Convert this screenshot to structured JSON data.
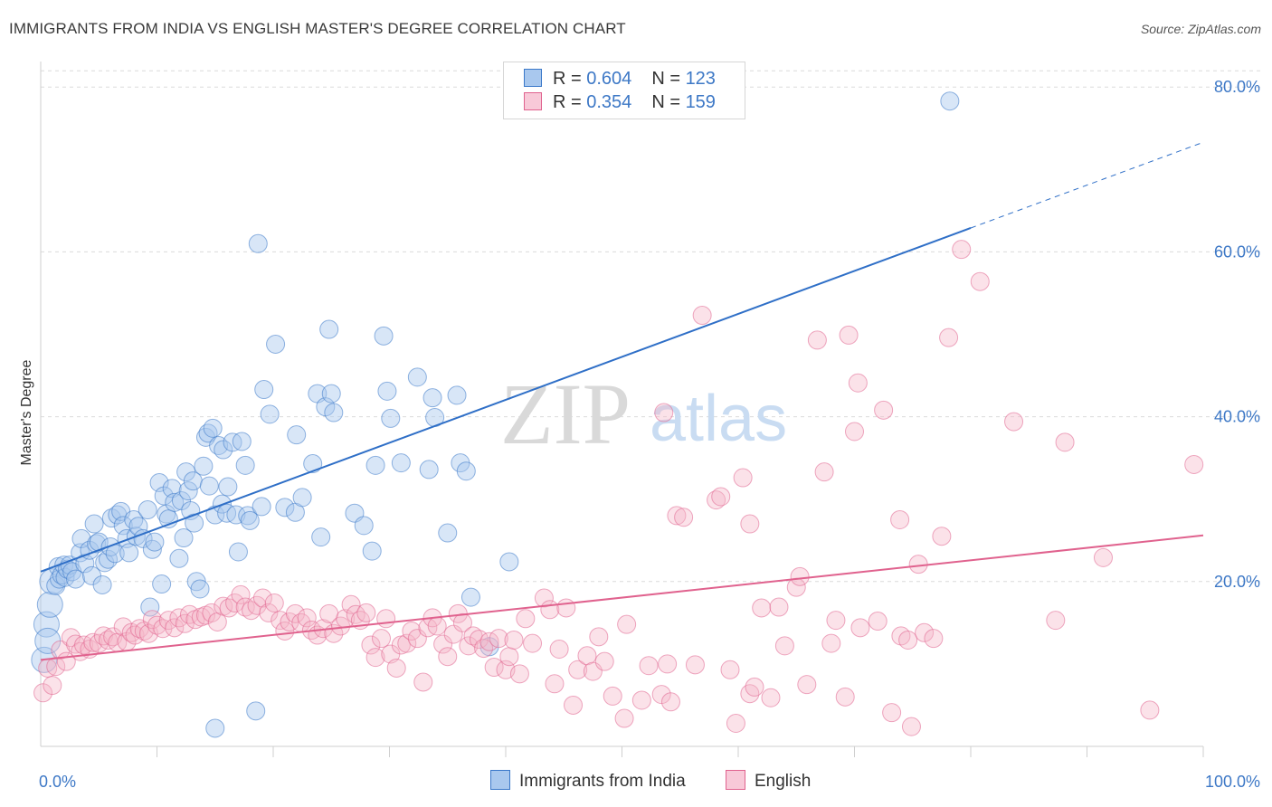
{
  "header": {
    "title": "IMMIGRANTS FROM INDIA VS ENGLISH MASTER'S DEGREE CORRELATION CHART",
    "source": "Source: ZipAtlas.com"
  },
  "watermark": {
    "zip": "ZIP",
    "atlas": "atlas"
  },
  "legend": {
    "rows": [
      {
        "r_label": "R = ",
        "r_value": "0.604",
        "n_label": "N = ",
        "n_value": "123"
      },
      {
        "r_label": "R = ",
        "r_value": "0.354",
        "n_label": "N = ",
        "n_value": "159"
      }
    ]
  },
  "bottom_legend": [
    {
      "label": "Immigrants from India"
    },
    {
      "label": "English"
    }
  ],
  "colors": {
    "blue": "#3a78c9",
    "blue_fill": "#a9c8ee",
    "pink": "#e0628e",
    "pink_fill": "#f5b6c9",
    "grid": "#dcdcdc",
    "tick_text": "#3d78c6"
  },
  "chart_data": {
    "type": "scatter",
    "title": "IMMIGRANTS FROM INDIA VS ENGLISH MASTER'S DEGREE CORRELATION CHART",
    "xlabel": "",
    "ylabel": "Master's Degree",
    "xlim": [
      0,
      100
    ],
    "ylim": [
      0,
      82
    ],
    "x_tick_labels": [
      {
        "value": 0,
        "label": "0.0%"
      },
      {
        "value": 100,
        "label": "100.0%"
      }
    ],
    "y_tick_labels": [
      {
        "value": 20,
        "label": "20.0%"
      },
      {
        "value": 40,
        "label": "40.0%"
      },
      {
        "value": 60,
        "label": "60.0%"
      },
      {
        "value": 80,
        "label": "80.0%"
      }
    ],
    "grid": true,
    "legend_position": "top-center",
    "series": [
      {
        "name": "Immigrants from India",
        "color": "#3a78c9",
        "R": 0.604,
        "N": 123,
        "trend": {
          "x0": 0,
          "y0": 21.2,
          "x1": 80,
          "y1": 62.9,
          "dash_to_x": 100,
          "dash_to_y": 73.3
        },
        "points": [
          [
            0.3,
            10.5
          ],
          [
            0.5,
            14.8
          ],
          [
            0.8,
            17.2
          ],
          [
            1.0,
            20.0
          ],
          [
            1.3,
            19.5
          ],
          [
            1.5,
            21.8
          ],
          [
            1.6,
            20.3
          ],
          [
            1.8,
            20.8
          ],
          [
            2.0,
            22.0
          ],
          [
            2.1,
            20.5
          ],
          [
            2.3,
            21.5
          ],
          [
            2.5,
            22.0
          ],
          [
            2.7,
            21.2
          ],
          [
            3.0,
            20.3
          ],
          [
            3.4,
            23.5
          ],
          [
            3.5,
            25.2
          ],
          [
            3.8,
            22.2
          ],
          [
            4.2,
            23.8
          ],
          [
            4.4,
            20.7
          ],
          [
            4.6,
            27.0
          ],
          [
            4.8,
            24.6
          ],
          [
            5.0,
            24.8
          ],
          [
            5.3,
            19.6
          ],
          [
            5.5,
            22.3
          ],
          [
            5.8,
            22.7
          ],
          [
            6.0,
            24.2
          ],
          [
            6.1,
            27.7
          ],
          [
            6.4,
            23.4
          ],
          [
            6.6,
            28.1
          ],
          [
            6.9,
            28.5
          ],
          [
            7.1,
            26.8
          ],
          [
            7.4,
            25.2
          ],
          [
            7.6,
            23.5
          ],
          [
            8.0,
            27.5
          ],
          [
            8.2,
            25.5
          ],
          [
            8.4,
            26.7
          ],
          [
            8.8,
            25.2
          ],
          [
            9.2,
            28.7
          ],
          [
            9.4,
            16.9
          ],
          [
            9.6,
            23.9
          ],
          [
            9.8,
            24.8
          ],
          [
            10.2,
            32.0
          ],
          [
            10.4,
            19.7
          ],
          [
            10.6,
            30.4
          ],
          [
            10.8,
            28.2
          ],
          [
            11.0,
            27.6
          ],
          [
            11.3,
            31.3
          ],
          [
            11.5,
            29.6
          ],
          [
            11.9,
            22.8
          ],
          [
            12.1,
            29.8
          ],
          [
            12.3,
            25.3
          ],
          [
            12.5,
            33.3
          ],
          [
            12.7,
            31.0
          ],
          [
            12.9,
            28.6
          ],
          [
            13.1,
            32.2
          ],
          [
            13.2,
            27.1
          ],
          [
            13.4,
            20.0
          ],
          [
            13.7,
            19.1
          ],
          [
            14.0,
            34.0
          ],
          [
            14.2,
            37.5
          ],
          [
            14.4,
            38.0
          ],
          [
            14.5,
            31.6
          ],
          [
            14.8,
            38.6
          ],
          [
            15.0,
            28.1
          ],
          [
            15.3,
            36.5
          ],
          [
            15.6,
            29.4
          ],
          [
            15.7,
            36.0
          ],
          [
            16.0,
            28.3
          ],
          [
            16.1,
            31.5
          ],
          [
            16.5,
            36.9
          ],
          [
            16.8,
            28.1
          ],
          [
            17.0,
            23.6
          ],
          [
            17.3,
            37.0
          ],
          [
            17.6,
            34.1
          ],
          [
            17.8,
            28.0
          ],
          [
            18.0,
            27.4
          ],
          [
            18.7,
            61.0
          ],
          [
            19.0,
            29.1
          ],
          [
            19.2,
            43.3
          ],
          [
            19.7,
            40.3
          ],
          [
            20.2,
            48.8
          ],
          [
            21.0,
            29.0
          ],
          [
            21.9,
            28.4
          ],
          [
            22.0,
            37.8
          ],
          [
            22.5,
            30.2
          ],
          [
            23.4,
            34.3
          ],
          [
            23.8,
            42.8
          ],
          [
            24.1,
            25.4
          ],
          [
            24.5,
            41.2
          ],
          [
            24.8,
            50.6
          ],
          [
            25.0,
            42.8
          ],
          [
            25.2,
            40.5
          ],
          [
            27.0,
            28.3
          ],
          [
            27.8,
            26.8
          ],
          [
            28.5,
            23.7
          ],
          [
            28.8,
            34.1
          ],
          [
            29.5,
            49.8
          ],
          [
            29.8,
            43.1
          ],
          [
            30.1,
            39.8
          ],
          [
            31.0,
            34.4
          ],
          [
            32.4,
            44.8
          ],
          [
            33.4,
            33.6
          ],
          [
            33.7,
            42.3
          ],
          [
            33.9,
            39.9
          ],
          [
            35.0,
            25.9
          ],
          [
            35.8,
            42.6
          ],
          [
            36.1,
            34.4
          ],
          [
            36.6,
            33.4
          ],
          [
            37.0,
            18.1
          ],
          [
            38.6,
            12.1
          ],
          [
            40.3,
            22.4
          ],
          [
            78.2,
            78.3
          ],
          [
            18.5,
            4.3
          ],
          [
            15.0,
            2.2
          ],
          [
            0.6,
            12.8
          ]
        ]
      },
      {
        "name": "English",
        "color": "#e0628e",
        "R": 0.354,
        "N": 159,
        "trend": {
          "x0": 0,
          "y0": 10.5,
          "x1": 100,
          "y1": 25.6
        },
        "points": [
          [
            0.2,
            6.5
          ],
          [
            0.6,
            9.5
          ],
          [
            1.0,
            7.4
          ],
          [
            1.3,
            9.7
          ],
          [
            1.7,
            11.7
          ],
          [
            2.2,
            10.3
          ],
          [
            2.6,
            13.2
          ],
          [
            3.0,
            12.4
          ],
          [
            3.4,
            11.5
          ],
          [
            3.7,
            12.3
          ],
          [
            4.2,
            11.8
          ],
          [
            4.5,
            12.6
          ],
          [
            5.0,
            12.5
          ],
          [
            5.4,
            13.4
          ],
          [
            5.8,
            12.9
          ],
          [
            6.2,
            13.3
          ],
          [
            6.6,
            12.6
          ],
          [
            7.1,
            14.5
          ],
          [
            7.4,
            12.7
          ],
          [
            7.8,
            13.8
          ],
          [
            8.1,
            13.5
          ],
          [
            8.5,
            14.3
          ],
          [
            8.9,
            14.0
          ],
          [
            9.3,
            13.7
          ],
          [
            9.6,
            15.4
          ],
          [
            10.0,
            14.7
          ],
          [
            10.5,
            14.3
          ],
          [
            11.0,
            15.3
          ],
          [
            11.5,
            14.4
          ],
          [
            11.9,
            15.6
          ],
          [
            12.4,
            14.9
          ],
          [
            12.8,
            16.0
          ],
          [
            13.3,
            15.4
          ],
          [
            13.8,
            15.7
          ],
          [
            14.2,
            15.9
          ],
          [
            14.7,
            16.2
          ],
          [
            15.2,
            15.1
          ],
          [
            15.7,
            17.0
          ],
          [
            16.2,
            16.8
          ],
          [
            16.7,
            17.4
          ],
          [
            17.2,
            18.4
          ],
          [
            17.6,
            16.9
          ],
          [
            18.1,
            16.5
          ],
          [
            18.6,
            17.1
          ],
          [
            19.1,
            18.0
          ],
          [
            19.6,
            16.2
          ],
          [
            20.1,
            17.4
          ],
          [
            20.6,
            15.3
          ],
          [
            21.0,
            14.0
          ],
          [
            21.4,
            15.1
          ],
          [
            21.9,
            16.1
          ],
          [
            22.4,
            15.0
          ],
          [
            22.9,
            15.6
          ],
          [
            23.3,
            14.1
          ],
          [
            23.8,
            13.5
          ],
          [
            24.3,
            14.3
          ],
          [
            24.8,
            16.1
          ],
          [
            25.2,
            13.7
          ],
          [
            25.8,
            14.6
          ],
          [
            26.2,
            15.5
          ],
          [
            26.7,
            17.2
          ],
          [
            27.1,
            16.0
          ],
          [
            27.5,
            15.3
          ],
          [
            28.0,
            16.2
          ],
          [
            28.4,
            12.3
          ],
          [
            28.8,
            10.8
          ],
          [
            29.3,
            13.1
          ],
          [
            29.7,
            15.5
          ],
          [
            30.1,
            11.2
          ],
          [
            30.6,
            9.5
          ],
          [
            31.0,
            12.3
          ],
          [
            31.5,
            12.5
          ],
          [
            31.9,
            14.0
          ],
          [
            32.4,
            13.1
          ],
          [
            32.9,
            7.8
          ],
          [
            33.3,
            14.4
          ],
          [
            33.7,
            15.6
          ],
          [
            34.1,
            14.6
          ],
          [
            34.6,
            12.4
          ],
          [
            35.0,
            10.9
          ],
          [
            35.5,
            13.6
          ],
          [
            35.9,
            16.1
          ],
          [
            36.3,
            15.0
          ],
          [
            36.8,
            12.2
          ],
          [
            37.2,
            13.4
          ],
          [
            37.7,
            13.0
          ],
          [
            38.1,
            11.9
          ],
          [
            38.6,
            12.7
          ],
          [
            39.0,
            9.6
          ],
          [
            39.4,
            13.1
          ],
          [
            40.0,
            9.3
          ],
          [
            40.3,
            10.9
          ],
          [
            40.7,
            12.9
          ],
          [
            41.2,
            8.8
          ],
          [
            41.7,
            15.5
          ],
          [
            42.3,
            12.5
          ],
          [
            43.3,
            18.0
          ],
          [
            43.8,
            16.6
          ],
          [
            44.2,
            7.6
          ],
          [
            44.6,
            11.8
          ],
          [
            45.2,
            16.8
          ],
          [
            45.8,
            5.0
          ],
          [
            46.2,
            9.3
          ],
          [
            47.0,
            11.0
          ],
          [
            47.5,
            9.1
          ],
          [
            48.0,
            13.3
          ],
          [
            48.5,
            10.3
          ],
          [
            49.2,
            6.1
          ],
          [
            50.2,
            3.4
          ],
          [
            50.4,
            14.8
          ],
          [
            51.7,
            5.6
          ],
          [
            52.3,
            9.8
          ],
          [
            53.4,
            6.3
          ],
          [
            53.6,
            40.5
          ],
          [
            54.2,
            5.4
          ],
          [
            54.7,
            28.0
          ],
          [
            55.3,
            27.8
          ],
          [
            56.3,
            9.9
          ],
          [
            56.9,
            52.3
          ],
          [
            58.1,
            29.9
          ],
          [
            58.5,
            30.3
          ],
          [
            59.3,
            9.3
          ],
          [
            59.8,
            2.8
          ],
          [
            60.4,
            32.6
          ],
          [
            61.0,
            6.4
          ],
          [
            61.4,
            7.2
          ],
          [
            62.0,
            16.8
          ],
          [
            62.8,
            5.9
          ],
          [
            63.5,
            16.9
          ],
          [
            64.0,
            12.2
          ],
          [
            65.0,
            19.3
          ],
          [
            65.3,
            20.6
          ],
          [
            65.9,
            7.5
          ],
          [
            66.8,
            49.3
          ],
          [
            67.4,
            33.3
          ],
          [
            68.0,
            12.5
          ],
          [
            68.4,
            15.3
          ],
          [
            69.2,
            6.0
          ],
          [
            69.5,
            49.9
          ],
          [
            70.0,
            38.2
          ],
          [
            70.3,
            44.1
          ],
          [
            70.5,
            14.4
          ],
          [
            72.0,
            15.2
          ],
          [
            73.2,
            4.1
          ],
          [
            73.9,
            27.5
          ],
          [
            74.0,
            13.4
          ],
          [
            74.6,
            12.9
          ],
          [
            74.9,
            2.4
          ],
          [
            75.5,
            22.1
          ],
          [
            76.0,
            13.8
          ],
          [
            76.8,
            13.1
          ],
          [
            77.5,
            25.5
          ],
          [
            78.1,
            49.6
          ],
          [
            79.2,
            60.3
          ],
          [
            80.8,
            56.4
          ],
          [
            83.7,
            39.4
          ],
          [
            87.3,
            15.3
          ],
          [
            88.1,
            36.9
          ],
          [
            91.4,
            22.9
          ],
          [
            95.4,
            4.4
          ],
          [
            99.2,
            34.2
          ],
          [
            53.9,
            10.0
          ],
          [
            61.0,
            27.0
          ],
          [
            72.5,
            40.8
          ]
        ]
      }
    ]
  }
}
